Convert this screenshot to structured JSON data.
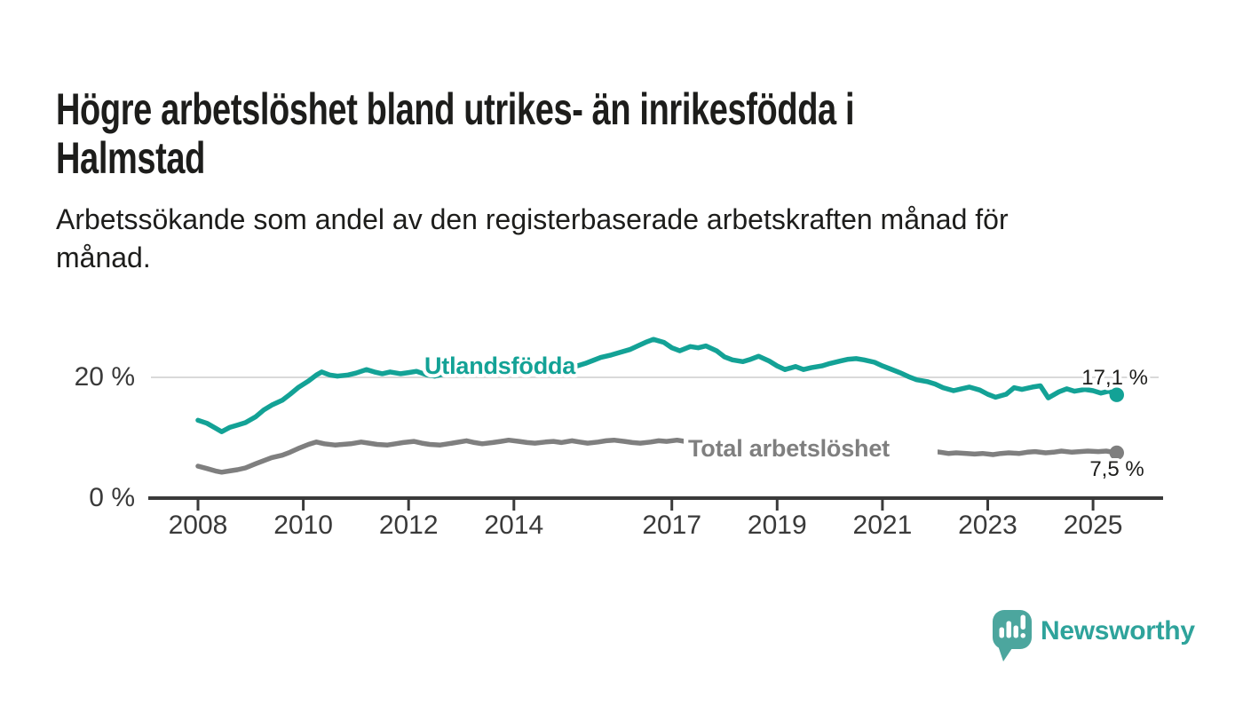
{
  "header": {
    "title_lines": [
      "Högre arbetslöshet bland utrikes- än inrikesfödda i",
      "Halmstad"
    ],
    "subtitle_lines": [
      "Arbetssökande som andel av den registerbaserade arbetskraften månad för",
      "månad."
    ]
  },
  "colors": {
    "teal": "#13a296",
    "gray": "#7f7f7f",
    "text_dark": "#1d1d1b",
    "axis_text": "#3a3a3a",
    "axis_line": "#3a3a3a",
    "gridline": "#d9d9d9",
    "logo_bubble": "#4ca69e",
    "logo_text": "#2ea39b"
  },
  "chart_data": {
    "type": "line",
    "title": "Högre arbetslöshet bland utrikes- än inrikesfödda i Halmstad",
    "subtitle": "Arbetssökande som andel av den registerbaserade arbetskraften månad för månad.",
    "x_axis": {
      "unit": "year",
      "range": [
        2007.1,
        2026.4
      ],
      "ticks": [
        {
          "value": 2008,
          "label": "2008"
        },
        {
          "value": 2010,
          "label": "2010"
        },
        {
          "value": 2012,
          "label": "2012"
        },
        {
          "value": 2014,
          "label": "2014"
        },
        {
          "value": 2017,
          "label": "2017"
        },
        {
          "value": 2019,
          "label": "2019"
        },
        {
          "value": 2021,
          "label": "2021"
        },
        {
          "value": 2023,
          "label": "2023"
        },
        {
          "value": 2025,
          "label": "2025"
        }
      ]
    },
    "y_axis": {
      "unit": "percent",
      "range": [
        0,
        34
      ],
      "grid": true,
      "ticks": [
        {
          "value": 0,
          "label": "0 %"
        },
        {
          "value": 20,
          "label": "20 %"
        }
      ]
    },
    "series": [
      {
        "name": "Utlandsfödda",
        "color": "#13a296",
        "end_value": 17.1,
        "end_label": "17,1 %",
        "points": [
          [
            2008.0,
            12.9
          ],
          [
            2008.17,
            12.4
          ],
          [
            2008.33,
            11.6
          ],
          [
            2008.45,
            11.0
          ],
          [
            2008.6,
            11.7
          ],
          [
            2008.75,
            12.1
          ],
          [
            2008.9,
            12.5
          ],
          [
            2009.1,
            13.5
          ],
          [
            2009.25,
            14.6
          ],
          [
            2009.4,
            15.4
          ],
          [
            2009.6,
            16.2
          ],
          [
            2009.75,
            17.2
          ],
          [
            2009.9,
            18.3
          ],
          [
            2010.1,
            19.4
          ],
          [
            2010.25,
            20.4
          ],
          [
            2010.35,
            20.9
          ],
          [
            2010.5,
            20.4
          ],
          [
            2010.65,
            20.2
          ],
          [
            2010.85,
            20.4
          ],
          [
            2011.0,
            20.7
          ],
          [
            2011.2,
            21.3
          ],
          [
            2011.35,
            20.9
          ],
          [
            2011.5,
            20.6
          ],
          [
            2011.65,
            20.9
          ],
          [
            2011.85,
            20.6
          ],
          [
            2012.0,
            20.8
          ],
          [
            2012.15,
            21.0
          ],
          [
            2012.35,
            20.4
          ],
          [
            2012.5,
            20.2
          ],
          [
            2012.65,
            20.5
          ],
          [
            2012.85,
            20.7
          ],
          [
            2013.0,
            20.9
          ],
          [
            2013.15,
            21.2
          ],
          [
            2013.35,
            20.8
          ],
          [
            2013.5,
            20.6
          ],
          [
            2013.65,
            20.9
          ],
          [
            2013.85,
            20.7
          ],
          [
            2014.0,
            21.0
          ],
          [
            2014.15,
            21.2
          ],
          [
            2014.35,
            20.9
          ],
          [
            2014.5,
            21.1
          ],
          [
            2014.65,
            21.4
          ],
          [
            2014.85,
            21.2
          ],
          [
            2015.0,
            21.6
          ],
          [
            2015.2,
            21.9
          ],
          [
            2015.35,
            22.3
          ],
          [
            2015.5,
            22.8
          ],
          [
            2015.65,
            23.3
          ],
          [
            2015.85,
            23.7
          ],
          [
            2016.0,
            24.1
          ],
          [
            2016.2,
            24.6
          ],
          [
            2016.35,
            25.2
          ],
          [
            2016.5,
            25.8
          ],
          [
            2016.65,
            26.3
          ],
          [
            2016.85,
            25.8
          ],
          [
            2017.0,
            24.9
          ],
          [
            2017.15,
            24.4
          ],
          [
            2017.35,
            25.1
          ],
          [
            2017.5,
            24.9
          ],
          [
            2017.65,
            25.2
          ],
          [
            2017.85,
            24.4
          ],
          [
            2018.0,
            23.4
          ],
          [
            2018.15,
            22.9
          ],
          [
            2018.35,
            22.6
          ],
          [
            2018.5,
            23.0
          ],
          [
            2018.65,
            23.5
          ],
          [
            2018.85,
            22.7
          ],
          [
            2019.0,
            21.9
          ],
          [
            2019.15,
            21.3
          ],
          [
            2019.35,
            21.8
          ],
          [
            2019.5,
            21.3
          ],
          [
            2019.65,
            21.6
          ],
          [
            2019.85,
            21.9
          ],
          [
            2020.0,
            22.3
          ],
          [
            2020.2,
            22.7
          ],
          [
            2020.35,
            23.0
          ],
          [
            2020.5,
            23.1
          ],
          [
            2020.65,
            22.9
          ],
          [
            2020.85,
            22.5
          ],
          [
            2021.0,
            21.9
          ],
          [
            2021.15,
            21.4
          ],
          [
            2021.35,
            20.7
          ],
          [
            2021.5,
            20.1
          ],
          [
            2021.65,
            19.6
          ],
          [
            2021.85,
            19.3
          ],
          [
            2022.0,
            18.9
          ],
          [
            2022.15,
            18.3
          ],
          [
            2022.35,
            17.8
          ],
          [
            2022.5,
            18.1
          ],
          [
            2022.65,
            18.4
          ],
          [
            2022.85,
            17.9
          ],
          [
            2023.0,
            17.2
          ],
          [
            2023.15,
            16.7
          ],
          [
            2023.35,
            17.2
          ],
          [
            2023.5,
            18.3
          ],
          [
            2023.65,
            18.0
          ],
          [
            2023.85,
            18.4
          ],
          [
            2024.0,
            18.6
          ],
          [
            2024.15,
            16.6
          ],
          [
            2024.35,
            17.6
          ],
          [
            2024.5,
            18.1
          ],
          [
            2024.65,
            17.7
          ],
          [
            2024.85,
            18.0
          ],
          [
            2025.0,
            17.8
          ],
          [
            2025.15,
            17.4
          ],
          [
            2025.3,
            17.7
          ],
          [
            2025.45,
            17.1
          ]
        ]
      },
      {
        "name": "Total arbetslöshet",
        "color": "#7f7f7f",
        "end_value": 7.5,
        "end_label": "7,5 %",
        "points": [
          [
            2008.0,
            5.3
          ],
          [
            2008.17,
            4.9
          ],
          [
            2008.33,
            4.5
          ],
          [
            2008.45,
            4.3
          ],
          [
            2008.6,
            4.5
          ],
          [
            2008.75,
            4.7
          ],
          [
            2008.9,
            5.0
          ],
          [
            2009.1,
            5.7
          ],
          [
            2009.25,
            6.2
          ],
          [
            2009.4,
            6.7
          ],
          [
            2009.6,
            7.1
          ],
          [
            2009.75,
            7.6
          ],
          [
            2009.9,
            8.2
          ],
          [
            2010.1,
            8.9
          ],
          [
            2010.25,
            9.3
          ],
          [
            2010.4,
            9.0
          ],
          [
            2010.6,
            8.8
          ],
          [
            2010.75,
            8.9
          ],
          [
            2010.9,
            9.0
          ],
          [
            2011.1,
            9.3
          ],
          [
            2011.25,
            9.1
          ],
          [
            2011.4,
            8.9
          ],
          [
            2011.6,
            8.8
          ],
          [
            2011.75,
            9.0
          ],
          [
            2011.9,
            9.2
          ],
          [
            2012.1,
            9.4
          ],
          [
            2012.25,
            9.1
          ],
          [
            2012.4,
            8.9
          ],
          [
            2012.6,
            8.8
          ],
          [
            2012.75,
            9.0
          ],
          [
            2012.9,
            9.2
          ],
          [
            2013.1,
            9.5
          ],
          [
            2013.25,
            9.2
          ],
          [
            2013.4,
            9.0
          ],
          [
            2013.6,
            9.2
          ],
          [
            2013.75,
            9.4
          ],
          [
            2013.9,
            9.6
          ],
          [
            2014.1,
            9.4
          ],
          [
            2014.25,
            9.2
          ],
          [
            2014.4,
            9.1
          ],
          [
            2014.6,
            9.3
          ],
          [
            2014.75,
            9.4
          ],
          [
            2014.9,
            9.2
          ],
          [
            2015.1,
            9.5
          ],
          [
            2015.25,
            9.3
          ],
          [
            2015.4,
            9.1
          ],
          [
            2015.6,
            9.3
          ],
          [
            2015.75,
            9.5
          ],
          [
            2015.9,
            9.6
          ],
          [
            2016.1,
            9.4
          ],
          [
            2016.25,
            9.2
          ],
          [
            2016.4,
            9.1
          ],
          [
            2016.6,
            9.3
          ],
          [
            2016.75,
            9.5
          ],
          [
            2016.9,
            9.4
          ],
          [
            2017.1,
            9.6
          ],
          [
            2017.25,
            9.4
          ],
          [
            2017.4,
            9.2
          ],
          [
            2017.6,
            9.0
          ],
          [
            2017.75,
            8.9
          ],
          [
            2017.9,
            8.8
          ],
          [
            2018.1,
            8.7
          ],
          [
            2018.3,
            8.6
          ],
          [
            2018.5,
            8.5
          ],
          [
            2018.7,
            8.4
          ],
          [
            2018.9,
            8.3
          ],
          [
            2019.1,
            8.2
          ],
          [
            2019.3,
            8.2
          ],
          [
            2019.5,
            8.3
          ],
          [
            2019.7,
            8.4
          ],
          [
            2019.9,
            8.6
          ],
          [
            2020.1,
            8.9
          ],
          [
            2020.3,
            9.2
          ],
          [
            2020.45,
            9.4
          ],
          [
            2020.6,
            9.3
          ],
          [
            2020.8,
            9.1
          ],
          [
            2020.95,
            8.9
          ],
          [
            2021.1,
            8.6
          ],
          [
            2021.3,
            8.4
          ],
          [
            2021.5,
            8.2
          ],
          [
            2021.7,
            8.0
          ],
          [
            2021.9,
            7.8
          ],
          [
            2022.1,
            7.6
          ],
          [
            2022.25,
            7.4
          ],
          [
            2022.4,
            7.5
          ],
          [
            2022.6,
            7.4
          ],
          [
            2022.75,
            7.3
          ],
          [
            2022.9,
            7.4
          ],
          [
            2023.1,
            7.2
          ],
          [
            2023.25,
            7.4
          ],
          [
            2023.4,
            7.5
          ],
          [
            2023.6,
            7.4
          ],
          [
            2023.75,
            7.6
          ],
          [
            2023.9,
            7.7
          ],
          [
            2024.1,
            7.5
          ],
          [
            2024.25,
            7.6
          ],
          [
            2024.4,
            7.8
          ],
          [
            2024.6,
            7.6
          ],
          [
            2024.75,
            7.7
          ],
          [
            2024.9,
            7.8
          ],
          [
            2025.1,
            7.7
          ],
          [
            2025.25,
            7.8
          ],
          [
            2025.45,
            7.5
          ]
        ]
      }
    ],
    "legend_position": "inline-labels"
  },
  "footer": {
    "brand": "Newsworthy"
  }
}
